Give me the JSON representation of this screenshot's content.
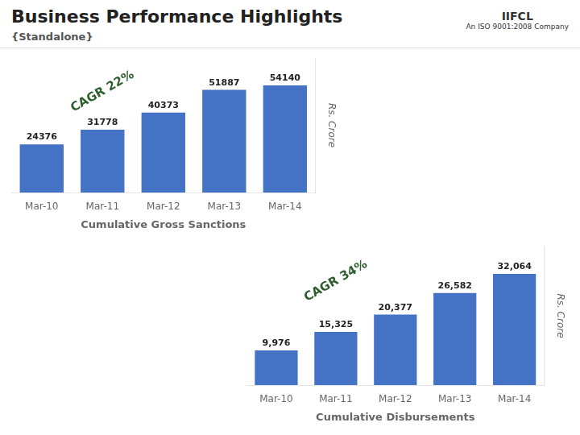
{
  "chart_data": [
    {
      "type": "bar",
      "title": "Business Performance Highlights",
      "subtitle": "{Standalone}",
      "xlabel": "Cumulative Gross Sanctions",
      "ylabel": "Rs. Crore",
      "categories": [
        "Mar-10",
        "Mar-11",
        "Mar-12",
        "Mar-13",
        "Mar-14"
      ],
      "values": [
        24376,
        31778,
        40373,
        51887,
        54140
      ],
      "color": "#4472C4",
      "ylim": [
        0,
        68000
      ],
      "grid": false,
      "tick_labels": "x",
      "data_labels": true,
      "annotations": [
        "CAGR 22%",
        "IIFCL",
        "An ISO 9001:2008 Company"
      ]
    },
    {
      "type": "bar",
      "xlabel": "Cumulative Disbursements",
      "ylabel": "Rs. Crore",
      "categories": [
        "Mar-10",
        "Mar-11",
        "Mar-12",
        "Mar-13",
        "Mar-14"
      ],
      "values": [
        9976,
        15325,
        20377,
        26582,
        32064
      ],
      "value_labels": [
        "9,976",
        "15,325",
        "20,377",
        "26,582",
        "32,064"
      ],
      "color": "#4472C4",
      "ylim": [
        0,
        40000
      ],
      "grid": false,
      "tick_labels": "x",
      "data_labels": true,
      "annotations": [
        "CAGR 34%"
      ]
    }
  ]
}
